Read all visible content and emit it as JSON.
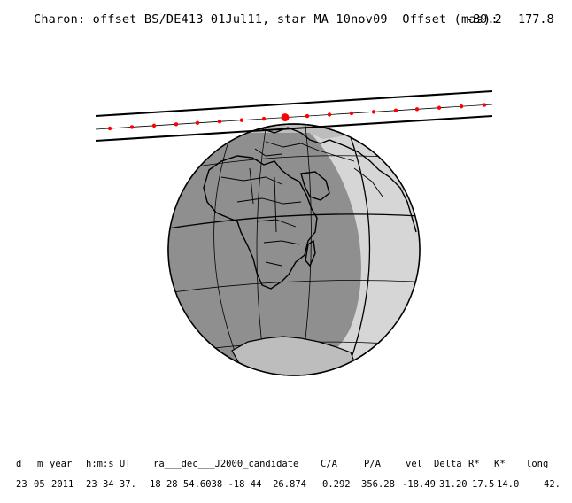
{
  "header": {
    "title": "Charon: offset BS/DE413 01Jul11, star MA 10nov09  Offset (mas):",
    "offset_ra": "-89.2",
    "offset_dec": "177.8"
  },
  "table": {
    "headers": [
      "d",
      "m",
      "year",
      "h:m:s UT",
      "ra___dec___J2000_candidate",
      "C/A",
      "P/A",
      "vel",
      "Delta",
      "R*",
      "K*",
      "long"
    ],
    "values": [
      "23",
      "05",
      "2011",
      "23 34 37.",
      "18 28 54.6038 -18 44  26.874",
      "0.292",
      "356.28",
      "-18.49",
      "31.20",
      "17.5",
      "14.0",
      "42."
    ]
  },
  "colors": {
    "day": "#bdbdbd",
    "night": "#8f8f8f",
    "twilight": "#d6d6d6",
    "path_dots": "#ff0000"
  }
}
